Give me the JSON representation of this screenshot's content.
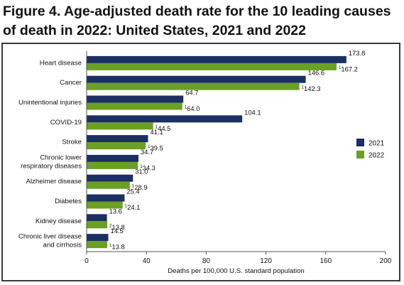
{
  "figure": {
    "title": "Figure 4. Age-adjusted death rate for the 10 leading causes of death in 2022: United States, 2021 and 2022"
  },
  "colors": {
    "series_2021": "#1b2f63",
    "series_2022": "#6aa023",
    "axis": "#555555"
  },
  "chart_data": {
    "type": "bar",
    "orientation": "horizontal",
    "categories": [
      [
        "Heart disease"
      ],
      [
        "Cancer"
      ],
      [
        "Unintentional injuries"
      ],
      [
        "COVID-19"
      ],
      [
        "Stroke"
      ],
      [
        "Chronic lower",
        "respiratory diseases"
      ],
      [
        "Alzheimer disease"
      ],
      [
        "Diabetes"
      ],
      [
        "Kidney disease"
      ],
      [
        "Chronic liver disease",
        "and cirrhosis"
      ]
    ],
    "series": [
      {
        "name": "2021",
        "values": [
          173.8,
          146.6,
          64.7,
          104.1,
          41.1,
          34.7,
          31.0,
          25.4,
          13.6,
          14.5
        ],
        "labels": [
          "173.8",
          "146.6",
          "64.7",
          "104.1",
          "41.1",
          "34.7",
          "31.0",
          "25.4",
          "13.6",
          "14.5"
        ],
        "markers": [
          "",
          "",
          "",
          "",
          "",
          "",
          "",
          "",
          "",
          ""
        ]
      },
      {
        "name": "2022",
        "values": [
          167.2,
          142.3,
          64.0,
          44.5,
          39.5,
          34.3,
          28.9,
          24.1,
          13.8,
          13.8
        ],
        "labels": [
          "167.2",
          "142.3",
          "64.0",
          "44.5",
          "39.5",
          "34.3",
          "28.9",
          "24.1",
          "13.8",
          "13.8"
        ],
        "markers": [
          "1",
          "1",
          "1",
          "1",
          "1",
          "1",
          "1",
          "1",
          "2",
          "1"
        ]
      }
    ],
    "xlim": [
      0,
      200
    ],
    "xticks": [
      "0",
      "40",
      "80",
      "120",
      "160",
      "200"
    ],
    "xtick_values": [
      0,
      40,
      80,
      120,
      160,
      200
    ],
    "xlabel": "Deaths per 100,000 U.S. standard population",
    "legend_position": "right",
    "grid": false
  }
}
